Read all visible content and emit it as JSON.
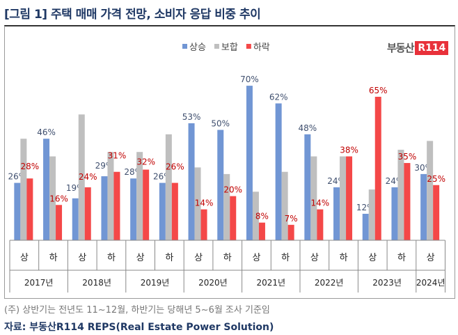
{
  "title": "[그림 1] 주택 매매 가격 전망, 소비자 응답 비중 추이",
  "logo": {
    "text": "부동산",
    "badge": "R114"
  },
  "footnote": "(주) 상반기는 전년도 11~12월, 하반기는 당해년 5~6월 조사 기준임",
  "source": "자료: 부동산R114 REPS(Real Estate Power Solution)",
  "chart_data": {
    "type": "bar",
    "categories": [
      "상",
      "하",
      "상",
      "하",
      "상",
      "하",
      "상",
      "하",
      "상",
      "하",
      "상",
      "하",
      "상",
      "하",
      "상"
    ],
    "years": [
      "2017년",
      "2018년",
      "2019년",
      "2020년",
      "2021년",
      "2022년",
      "2023년",
      "2024년"
    ],
    "series": [
      {
        "name": "상승",
        "color": "#7196d4",
        "labeled": true,
        "label_color": "#3f4f6e",
        "values": [
          26,
          46,
          19,
          29,
          28,
          26,
          53,
          50,
          70,
          62,
          48,
          24,
          12,
          24,
          30
        ]
      },
      {
        "name": "보합",
        "color": "#bfbfbf",
        "labeled": false,
        "values": [
          46,
          38,
          57,
          40,
          40,
          48,
          33,
          30,
          22,
          31,
          38,
          38,
          23,
          41,
          45
        ]
      },
      {
        "name": "하락",
        "color": "#f44848",
        "labeled": true,
        "label_color": "#c00000",
        "values": [
          28,
          16,
          24,
          31,
          32,
          26,
          14,
          20,
          8,
          7,
          14,
          38,
          65,
          35,
          25
        ]
      }
    ],
    "value_suffix": "%",
    "ylim": [
      0,
      75
    ],
    "legend": "top-center",
    "grid": false
  }
}
